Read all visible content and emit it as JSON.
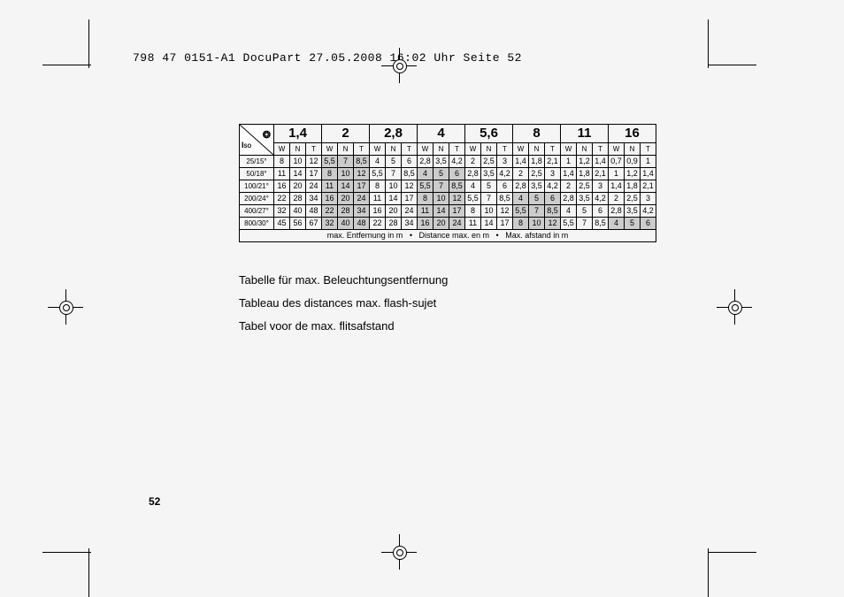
{
  "header": "798 47 0151-A1 DocuPart  27.05.2008  16:02 Uhr  Seite 52",
  "page_number": "52",
  "fstops": [
    "1,4",
    "2",
    "2,8",
    "4",
    "5,6",
    "8",
    "11",
    "16"
  ],
  "sub_headers": [
    "W",
    "N",
    "T"
  ],
  "iso_label": "Iso",
  "rows": [
    {
      "iso": "25/15°",
      "cells": [
        "8",
        "10",
        "12",
        "5,5",
        "7",
        "8,5",
        "4",
        "5",
        "6",
        "2,8",
        "3,5",
        "4,2",
        "2",
        "2,5",
        "3",
        "1,4",
        "1,8",
        "2,1",
        "1",
        "1,2",
        "1,4",
        "0,7",
        "0,9",
        "1"
      ]
    },
    {
      "iso": "50/18°",
      "cells": [
        "11",
        "14",
        "17",
        "8",
        "10",
        "12",
        "5,5",
        "7",
        "8,5",
        "4",
        "5",
        "6",
        "2,8",
        "3,5",
        "4,2",
        "2",
        "2,5",
        "3",
        "1,4",
        "1,8",
        "2,1",
        "1",
        "1,2",
        "1,4"
      ]
    },
    {
      "iso": "100/21°",
      "cells": [
        "16",
        "20",
        "24",
        "11",
        "14",
        "17",
        "8",
        "10",
        "12",
        "5,5",
        "7",
        "8,5",
        "4",
        "5",
        "6",
        "2,8",
        "3,5",
        "4,2",
        "2",
        "2,5",
        "3",
        "1,4",
        "1,8",
        "2,1"
      ]
    },
    {
      "iso": "200/24°",
      "cells": [
        "22",
        "28",
        "34",
        "16",
        "20",
        "24",
        "11",
        "14",
        "17",
        "8",
        "10",
        "12",
        "5,5",
        "7",
        "8,5",
        "4",
        "5",
        "6",
        "2,8",
        "3,5",
        "4,2",
        "2",
        "2,5",
        "3"
      ]
    },
    {
      "iso": "400/27°",
      "cells": [
        "32",
        "40",
        "48",
        "22",
        "28",
        "34",
        "16",
        "20",
        "24",
        "11",
        "14",
        "17",
        "8",
        "10",
        "12",
        "5,5",
        "7",
        "8,5",
        "4",
        "5",
        "6",
        "2,8",
        "3,5",
        "4,2"
      ]
    },
    {
      "iso": "800/30°",
      "cells": [
        "45",
        "56",
        "67",
        "32",
        "40",
        "48",
        "22",
        "28",
        "34",
        "16",
        "20",
        "24",
        "11",
        "14",
        "17",
        "8",
        "10",
        "12",
        "5,5",
        "7",
        "8,5",
        "4",
        "5",
        "6"
      ]
    }
  ],
  "shaded_blocks": {
    "0": [
      1
    ],
    "1": [
      1,
      3
    ],
    "2": [
      1,
      3
    ],
    "3": [
      1,
      3,
      5
    ],
    "4": [
      1,
      3,
      5
    ],
    "5": [
      1,
      3,
      5,
      7
    ]
  },
  "footer": {
    "a": "max. Entfernung in m",
    "b": "Distance max. en m",
    "c": "Max. afstand in m",
    "sep": "•"
  },
  "captions": [
    "Tabelle für max. Beleuchtungsentfernung",
    "Tableau des distances max. flash-sujet",
    "Tabel voor de max. flitsafstand"
  ]
}
